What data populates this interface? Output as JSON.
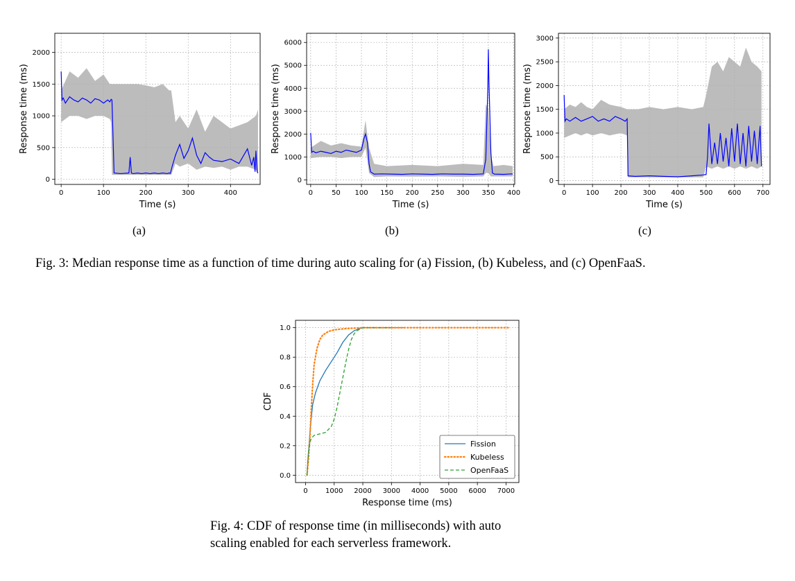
{
  "figure3": {
    "panels": [
      {
        "id": "a",
        "sub_label": "(a)",
        "chart_data": {
          "type": "line",
          "xlabel": "Time (s)",
          "ylabel": "Response time (ms)",
          "xlim": [
            -15,
            470
          ],
          "ylim": [
            -80,
            2300
          ],
          "xticks": [
            0,
            100,
            200,
            300,
            400
          ],
          "yticks": [
            0,
            500,
            1000,
            1500,
            2000
          ],
          "grid": true,
          "series": [
            {
              "color": "#0000ff",
              "x": [
                0,
                2,
                5,
                10,
                20,
                30,
                40,
                50,
                60,
                70,
                80,
                90,
                100,
                110,
                115,
                118,
                120,
                125,
                140,
                160,
                163,
                166,
                170,
                180,
                190,
                200,
                210,
                220,
                230,
                240,
                250,
                255,
                258,
                262,
                270,
                280,
                290,
                300,
                310,
                320,
                330,
                340,
                350,
                360,
                380,
                400,
                420,
                440,
                450,
                455,
                458,
                460,
                463,
                465
              ],
              "y": [
                1700,
                1250,
                1280,
                1200,
                1300,
                1250,
                1220,
                1280,
                1250,
                1200,
                1270,
                1250,
                1200,
                1250,
                1220,
                1260,
                1250,
                100,
                90,
                100,
                350,
                100,
                90,
                100,
                90,
                100,
                90,
                100,
                90,
                100,
                90,
                100,
                95,
                200,
                380,
                550,
                330,
                450,
                650,
                380,
                250,
                420,
                350,
                300,
                280,
                320,
                250,
                480,
                220,
                350,
                120,
                450,
                120,
                100
              ]
            },
            {
              "color": "#b0b0b0",
              "name_hidden": true,
              "band_x": [
                0,
                20,
                40,
                60,
                80,
                100,
                115,
                118,
                120,
                140,
                160,
                180,
                200,
                220,
                240,
                255,
                260,
                270,
                280,
                300,
                320,
                340,
                360,
                380,
                400,
                420,
                440,
                460,
                465
              ],
              "upper": [
                1400,
                1700,
                1600,
                1750,
                1550,
                1650,
                1500,
                1500,
                1500,
                1500,
                1500,
                1500,
                1480,
                1450,
                1500,
                1400,
                1400,
                900,
                1000,
                800,
                1100,
                750,
                1000,
                900,
                800,
                850,
                900,
                1000,
                1100
              ],
              "lower": [
                900,
                1000,
                1000,
                950,
                1000,
                1000,
                950,
                900,
                70,
                70,
                70,
                70,
                70,
                70,
                70,
                70,
                70,
                250,
                200,
                250,
                150,
                200,
                180,
                200,
                150,
                200,
                200,
                150,
                80
              ]
            }
          ]
        }
      },
      {
        "id": "b",
        "sub_label": "(b)",
        "chart_data": {
          "type": "line",
          "xlabel": "Time (s)",
          "ylabel": "Response time (ms)",
          "xlim": [
            -8,
            402
          ],
          "ylim": [
            -200,
            6400
          ],
          "xticks": [
            0,
            50,
            100,
            150,
            200,
            250,
            300,
            350,
            400
          ],
          "yticks": [
            0,
            1000,
            2000,
            3000,
            4000,
            5000,
            6000
          ],
          "grid": true,
          "series": [
            {
              "color": "#0000ff",
              "x": [
                0,
                2,
                5,
                10,
                20,
                30,
                40,
                50,
                60,
                70,
                80,
                90,
                100,
                105,
                108,
                112,
                115,
                118,
                125,
                140,
                160,
                180,
                200,
                220,
                240,
                260,
                280,
                300,
                320,
                340,
                345,
                347,
                349,
                350,
                351,
                353,
                355,
                358,
                362,
                380,
                395,
                398
              ],
              "y": [
                2050,
                1200,
                1250,
                1180,
                1250,
                1200,
                1150,
                1250,
                1200,
                1300,
                1250,
                1200,
                1300,
                1800,
                2000,
                1600,
                700,
                350,
                250,
                260,
                250,
                240,
                260,
                250,
                240,
                260,
                250,
                250,
                240,
                260,
                900,
                2500,
                4000,
                5700,
                4500,
                2800,
                1200,
                300,
                250,
                240,
                260,
                250
              ]
            },
            {
              "color": "#b0b0b0",
              "band_x": [
                0,
                20,
                40,
                60,
                80,
                100,
                108,
                115,
                125,
                150,
                200,
                250,
                300,
                340,
                345,
                350,
                355,
                360,
                380,
                398
              ],
              "upper": [
                1400,
                1700,
                1500,
                1600,
                1500,
                1450,
                2600,
                1400,
                700,
                600,
                650,
                600,
                700,
                650,
                3300,
                3100,
                1100,
                600,
                650,
                600
              ],
              "lower": [
                950,
                1000,
                1000,
                950,
                1000,
                1000,
                1400,
                300,
                120,
                150,
                140,
                150,
                130,
                150,
                300,
                300,
                150,
                150,
                150,
                150
              ]
            }
          ]
        }
      },
      {
        "id": "c",
        "sub_label": "(c)",
        "chart_data": {
          "type": "line",
          "xlabel": "Time (s)",
          "ylabel": "Response time (ms)",
          "xlim": [
            -20,
            725
          ],
          "ylim": [
            -80,
            3100
          ],
          "xticks": [
            0,
            100,
            200,
            300,
            400,
            500,
            600,
            700
          ],
          "yticks": [
            0,
            500,
            1000,
            1500,
            2000,
            2500,
            3000
          ],
          "grid": true,
          "series": [
            {
              "color": "#0000ff",
              "x": [
                0,
                3,
                8,
                20,
                40,
                60,
                80,
                100,
                120,
                140,
                160,
                180,
                200,
                215,
                222,
                225,
                250,
                300,
                350,
                400,
                450,
                490,
                500,
                505,
                510,
                520,
                530,
                540,
                550,
                560,
                570,
                580,
                590,
                600,
                610,
                620,
                630,
                640,
                650,
                660,
                670,
                680,
                690,
                695
              ],
              "y": [
                1800,
                1250,
                1300,
                1250,
                1330,
                1250,
                1300,
                1350,
                1250,
                1300,
                1250,
                1350,
                1300,
                1250,
                1300,
                100,
                90,
                100,
                90,
                80,
                100,
                120,
                130,
                500,
                1200,
                350,
                800,
                350,
                1000,
                400,
                900,
                300,
                1100,
                400,
                1200,
                350,
                1000,
                300,
                1150,
                400,
                1050,
                350,
                1150,
                300
              ]
            },
            {
              "color": "#b0b0b0",
              "band_x": [
                0,
                20,
                40,
                60,
                80,
                100,
                130,
                160,
                200,
                222,
                225,
                260,
                300,
                350,
                400,
                450,
                490,
                500,
                520,
                540,
                560,
                580,
                600,
                620,
                640,
                660,
                680,
                695
              ],
              "upper": [
                1500,
                1600,
                1550,
                1650,
                1550,
                1500,
                1700,
                1600,
                1550,
                1500,
                1500,
                1500,
                1550,
                1500,
                1550,
                1500,
                1550,
                1800,
                2400,
                2500,
                2300,
                2600,
                2500,
                2400,
                2800,
                2500,
                2400,
                2300
              ],
              "lower": [
                900,
                950,
                1000,
                950,
                1000,
                950,
                1000,
                950,
                1000,
                950,
                70,
                70,
                70,
                70,
                70,
                70,
                70,
                300,
                250,
                300,
                250,
                300,
                250,
                300,
                250,
                300,
                250,
                300
              ]
            }
          ]
        }
      }
    ],
    "caption": "Fig. 3: Median response time as a function of time during auto scaling for (a) Fission, (b) Kubeless, and (c) OpenFaaS."
  },
  "figure4": {
    "chart_data": {
      "type": "line",
      "xlabel": "Response time (ms)",
      "ylabel": "CDF",
      "xlim": [
        -350,
        7450
      ],
      "ylim": [
        -0.05,
        1.05
      ],
      "xticks": [
        0,
        1000,
        2000,
        3000,
        4000,
        5000,
        6000,
        7000
      ],
      "yticks": [
        0.0,
        0.2,
        0.4,
        0.6,
        0.8,
        1.0
      ],
      "ytick_labels": [
        "0.0",
        "0.2",
        "0.4",
        "0.6",
        "0.8",
        "1.0"
      ],
      "grid": true,
      "legend_position": "lower-right",
      "series": [
        {
          "name": "Fission",
          "color": "#1f77b4",
          "style": "solid",
          "x": [
            50,
            80,
            120,
            180,
            250,
            350,
            500,
            700,
            900,
            1100,
            1300,
            1500,
            1700,
            1900,
            2000,
            2200,
            2600,
            3000,
            3500
          ],
          "y": [
            0.0,
            0.1,
            0.2,
            0.35,
            0.48,
            0.56,
            0.64,
            0.71,
            0.77,
            0.83,
            0.9,
            0.95,
            0.98,
            0.995,
            1.0,
            1.0,
            1.0,
            1.0,
            1.0
          ]
        },
        {
          "name": "Kubeless",
          "color": "#ff7f0e",
          "style": "dotted",
          "x": [
            50,
            100,
            150,
            200,
            250,
            300,
            400,
            500,
            600,
            800,
            1000,
            1200,
            1500,
            2000,
            3000,
            4000,
            5000,
            6000,
            7100
          ],
          "y": [
            0.0,
            0.1,
            0.25,
            0.45,
            0.62,
            0.75,
            0.86,
            0.92,
            0.95,
            0.975,
            0.985,
            0.99,
            0.995,
            1.0,
            1.0,
            1.0,
            1.0,
            1.0,
            1.0
          ]
        },
        {
          "name": "OpenFaaS",
          "color": "#2ca02c",
          "style": "dashed",
          "x": [
            50,
            100,
            150,
            200,
            300,
            500,
            700,
            900,
            1000,
            1100,
            1200,
            1300,
            1400,
            1500,
            1600,
            1700,
            1800,
            1900,
            2000,
            2200,
            2600,
            3000
          ],
          "y": [
            0.0,
            0.15,
            0.22,
            0.25,
            0.27,
            0.28,
            0.29,
            0.33,
            0.38,
            0.46,
            0.56,
            0.66,
            0.76,
            0.85,
            0.92,
            0.96,
            0.98,
            0.99,
            1.0,
            1.0,
            1.0,
            1.0
          ]
        }
      ]
    },
    "caption_lines": [
      "Fig. 4: CDF of response time (in milliseconds) with auto",
      "scaling enabled for each serverless framework."
    ]
  }
}
